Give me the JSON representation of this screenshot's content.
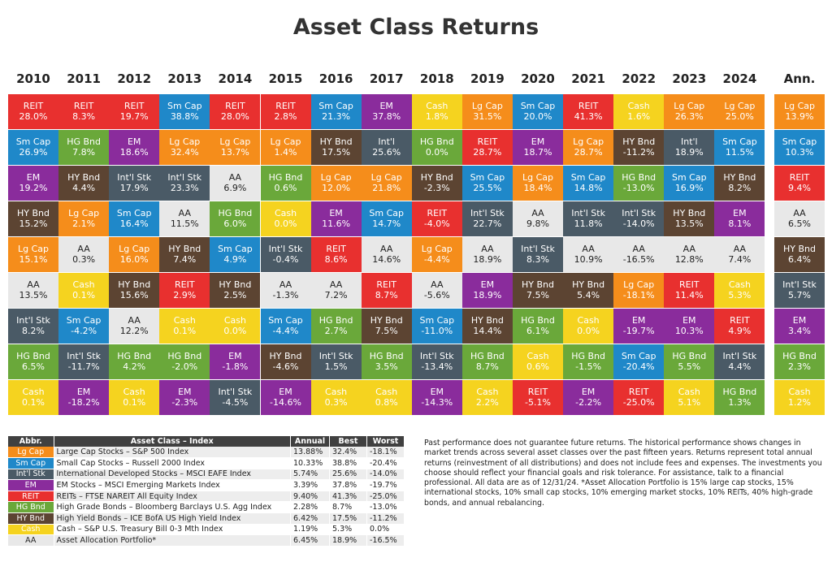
{
  "title": "Asset Class Returns",
  "colors": {
    "REIT": "#e8302f",
    "Sm Cap": "#1f88c9",
    "EM": "#8a2c9c",
    "Cash": "#f5d31f",
    "Lg Cap": "#f58d1b",
    "HG Bnd": "#6aa83a",
    "Int'l Stk": "#4a5a66",
    "HY Bnd": "#5c4432",
    "AA": "#e8e8e8"
  },
  "chart_data": {
    "type": "table",
    "columns": [
      "2010",
      "2011",
      "2012",
      "2013",
      "2014",
      "2015",
      "2016",
      "2017",
      "2018",
      "2019",
      "2020",
      "2021",
      "2022",
      "2023",
      "2024",
      "Ann."
    ],
    "rows": [
      [
        [
          "REIT",
          "28.0%"
        ],
        [
          "REIT",
          "8.3%"
        ],
        [
          "REIT",
          "19.7%"
        ],
        [
          "Sm Cap",
          "38.8%"
        ],
        [
          "REIT",
          "28.0%"
        ],
        [
          "REIT",
          "2.8%"
        ],
        [
          "Sm Cap",
          "21.3%"
        ],
        [
          "EM",
          "37.8%"
        ],
        [
          "Cash",
          "1.8%"
        ],
        [
          "Lg Cap",
          "31.5%"
        ],
        [
          "Sm Cap",
          "20.0%"
        ],
        [
          "REIT",
          "41.3%"
        ],
        [
          "Cash",
          "1.6%"
        ],
        [
          "Lg Cap",
          "26.3%"
        ],
        [
          "Lg Cap",
          "25.0%"
        ],
        [
          "Lg Cap",
          "13.9%"
        ]
      ],
      [
        [
          "Sm Cap",
          "26.9%"
        ],
        [
          "HG Bnd",
          "7.8%"
        ],
        [
          "EM",
          "18.6%"
        ],
        [
          "Lg Cap",
          "32.4%"
        ],
        [
          "Lg Cap",
          "13.7%"
        ],
        [
          "Lg Cap",
          "1.4%"
        ],
        [
          "HY Bnd",
          "17.5%"
        ],
        [
          "Int'l",
          "25.6%"
        ],
        [
          "HG Bnd",
          "0.0%"
        ],
        [
          "REIT",
          "28.7%"
        ],
        [
          "EM",
          "18.7%"
        ],
        [
          "Lg Cap",
          "28.7%"
        ],
        [
          "HY Bnd",
          "-11.2%"
        ],
        [
          "Int'l",
          "18.9%"
        ],
        [
          "Sm Cap",
          "11.5%"
        ],
        [
          "Sm Cap",
          "10.3%"
        ]
      ],
      [
        [
          "EM",
          "19.2%"
        ],
        [
          "HY Bnd",
          "4.4%"
        ],
        [
          "Int'l Stk",
          "17.9%"
        ],
        [
          "Int'l Stk",
          "23.3%"
        ],
        [
          "AA",
          "6.9%"
        ],
        [
          "HG Bnd",
          "0.6%"
        ],
        [
          "Lg Cap",
          "12.0%"
        ],
        [
          "Lg Cap",
          "21.8%"
        ],
        [
          "HY Bnd",
          "-2.3%"
        ],
        [
          "Sm Cap",
          "25.5%"
        ],
        [
          "Lg Cap",
          "18.4%"
        ],
        [
          "Sm Cap",
          "14.8%"
        ],
        [
          "HG Bnd",
          "-13.0%"
        ],
        [
          "Sm Cap",
          "16.9%"
        ],
        [
          "HY Bnd",
          "8.2%"
        ],
        [
          "REIT",
          "9.4%"
        ]
      ],
      [
        [
          "HY Bnd",
          "15.2%"
        ],
        [
          "Lg Cap",
          "2.1%"
        ],
        [
          "Sm Cap",
          "16.4%"
        ],
        [
          "AA",
          "11.5%"
        ],
        [
          "HG Bnd",
          "6.0%"
        ],
        [
          "Cash",
          "0.0%"
        ],
        [
          "EM",
          "11.6%"
        ],
        [
          "Sm Cap",
          "14.7%"
        ],
        [
          "REIT",
          "-4.0%"
        ],
        [
          "Int'l Stk",
          "22.7%"
        ],
        [
          "AA",
          "9.8%"
        ],
        [
          "Int'l Stk",
          "11.8%"
        ],
        [
          "Int'l Stk",
          "-14.0%"
        ],
        [
          "HY Bnd",
          "13.5%"
        ],
        [
          "EM",
          "8.1%"
        ],
        [
          "AA",
          "6.5%"
        ]
      ],
      [
        [
          "Lg Cap",
          "15.1%"
        ],
        [
          "AA",
          "0.3%"
        ],
        [
          "Lg Cap",
          "16.0%"
        ],
        [
          "HY Bnd",
          "7.4%"
        ],
        [
          "Sm Cap",
          "4.9%"
        ],
        [
          "Int'l Stk",
          "-0.4%"
        ],
        [
          "REIT",
          "8.6%"
        ],
        [
          "AA",
          "14.6%"
        ],
        [
          "Lg Cap",
          "-4.4%"
        ],
        [
          "AA",
          "18.9%"
        ],
        [
          "Int'l Stk",
          "8.3%"
        ],
        [
          "AA",
          "10.9%"
        ],
        [
          "AA",
          "-16.5%"
        ],
        [
          "AA",
          "12.8%"
        ],
        [
          "AA",
          "7.4%"
        ],
        [
          "HY Bnd",
          "6.4%"
        ]
      ],
      [
        [
          "AA",
          "13.5%"
        ],
        [
          "Cash",
          "0.1%"
        ],
        [
          "HY Bnd",
          "15.6%"
        ],
        [
          "REIT",
          "2.9%"
        ],
        [
          "HY Bnd",
          "2.5%"
        ],
        [
          "AA",
          "-1.3%"
        ],
        [
          "AA",
          "7.2%"
        ],
        [
          "REIT",
          "8.7%"
        ],
        [
          "AA",
          "-5.6%"
        ],
        [
          "EM",
          "18.9%"
        ],
        [
          "HY Bnd",
          "7.5%"
        ],
        [
          "HY Bnd",
          "5.4%"
        ],
        [
          "Lg Cap",
          "-18.1%"
        ],
        [
          "REIT",
          "11.4%"
        ],
        [
          "Cash",
          "5.3%"
        ],
        [
          "Int'l Stk",
          "5.7%"
        ]
      ],
      [
        [
          "Int'l Stk",
          "8.2%"
        ],
        [
          "Sm Cap",
          "-4.2%"
        ],
        [
          "AA",
          "12.2%"
        ],
        [
          "Cash",
          "0.1%"
        ],
        [
          "Cash",
          "0.0%"
        ],
        [
          "Sm Cap",
          "-4.4%"
        ],
        [
          "HG Bnd",
          "2.7%"
        ],
        [
          "HY Bnd",
          "7.5%"
        ],
        [
          "Sm Cap",
          "-11.0%"
        ],
        [
          "HY Bnd",
          "14.4%"
        ],
        [
          "HG Bnd",
          "6.1%"
        ],
        [
          "Cash",
          "0.0%"
        ],
        [
          "EM",
          "-19.7%"
        ],
        [
          "EM",
          "10.3%"
        ],
        [
          "REIT",
          "4.9%"
        ],
        [
          "EM",
          "3.4%"
        ]
      ],
      [
        [
          "HG Bnd",
          "6.5%"
        ],
        [
          "Int'l Stk",
          "-11.7%"
        ],
        [
          "HG Bnd",
          "4.2%"
        ],
        [
          "HG Bnd",
          "-2.0%"
        ],
        [
          "EM",
          "-1.8%"
        ],
        [
          "HY Bnd",
          "-4.6%"
        ],
        [
          "Int'l Stk",
          "1.5%"
        ],
        [
          "HG Bnd",
          "3.5%"
        ],
        [
          "Int'l Stk",
          "-13.4%"
        ],
        [
          "HG Bnd",
          "8.7%"
        ],
        [
          "Cash",
          "0.6%"
        ],
        [
          "HG Bnd",
          "-1.5%"
        ],
        [
          "Sm Cap",
          "-20.4%"
        ],
        [
          "HG Bnd",
          "5.5%"
        ],
        [
          "Int'l Stk",
          "4.4%"
        ],
        [
          "HG Bnd",
          "2.3%"
        ]
      ],
      [
        [
          "Cash",
          "0.1%"
        ],
        [
          "EM",
          "-18.2%"
        ],
        [
          "Cash",
          "0.1%"
        ],
        [
          "EM",
          "-2.3%"
        ],
        [
          "Int'l Stk",
          "-4.5%"
        ],
        [
          "EM",
          "-14.6%"
        ],
        [
          "Cash",
          "0.3%"
        ],
        [
          "Cash",
          "0.8%"
        ],
        [
          "EM",
          "-14.3%"
        ],
        [
          "Cash",
          "2.2%"
        ],
        [
          "REIT",
          "-5.1%"
        ],
        [
          "EM",
          "-2.2%"
        ],
        [
          "REIT",
          "-25.0%"
        ],
        [
          "Cash",
          "5.1%"
        ],
        [
          "HG Bnd",
          "1.3%"
        ],
        [
          "Cash",
          "1.2%"
        ]
      ]
    ]
  },
  "legend": {
    "headers": [
      "Abbr.",
      "Asset Class – Index",
      "Annual",
      "Best",
      "Worst"
    ],
    "rows": [
      {
        "abbr": "Lg Cap",
        "name": "Large Cap Stocks – S&P 500 Index",
        "annual": "13.88%",
        "best": "32.4%",
        "worst": "-18.1%"
      },
      {
        "abbr": "Sm Cap",
        "name": "Small Cap Stocks – Russell 2000 Index",
        "annual": "10.33%",
        "best": "38.8%",
        "worst": "-20.4%"
      },
      {
        "abbr": "Int'l Stk",
        "name": "International Developed Stocks – MSCI EAFE Index",
        "annual": "5.74%",
        "best": "25.6%",
        "worst": "-14.0%"
      },
      {
        "abbr": "EM",
        "name": "EM Stocks – MSCI Emerging Markets Index",
        "annual": "3.39%",
        "best": "37.8%",
        "worst": "-19.7%"
      },
      {
        "abbr": "REIT",
        "name": "REITs – FTSE NAREIT All Equity Index",
        "annual": "9.40%",
        "best": "41.3%",
        "worst": "-25.0%"
      },
      {
        "abbr": "HG Bnd",
        "name": "High Grade Bonds – Bloomberg Barclays U.S. Agg Index",
        "annual": "2.28%",
        "best": "8.7%",
        "worst": "-13.0%"
      },
      {
        "abbr": "HY Bnd",
        "name": "High Yield Bonds – ICE BofA US High Yield Index",
        "annual": "6.42%",
        "best": "17.5%",
        "worst": "-11.2%"
      },
      {
        "abbr": "Cash",
        "name": "Cash – S&P U.S. Treasury Bill 0-3 Mth Index",
        "annual": "1.19%",
        "best": "5.3%",
        "worst": "0.0%"
      },
      {
        "abbr": "AA",
        "name": "Asset Allocation Portfolio*",
        "annual": "6.45%",
        "best": "18.9%",
        "worst": "-16.5%"
      }
    ]
  },
  "disclaimer": "Past performance does not guarantee future returns. The historical performance shows changes in market trends across several asset classes over the past fifteen years. Returns represent total annual returns (reinvestment of all distributions) and does not include fees and expenses. The investments you choose should reflect your financial goals and risk tolerance. For assistance, talk to a financial professional. All data are as of 12/31/24. *Asset Allocation Portfolio is 15% large cap stocks, 15% international stocks, 10% small cap stocks, 10% emerging market stocks, 10% REITs, 40% high-grade bonds, and annual rebalancing."
}
